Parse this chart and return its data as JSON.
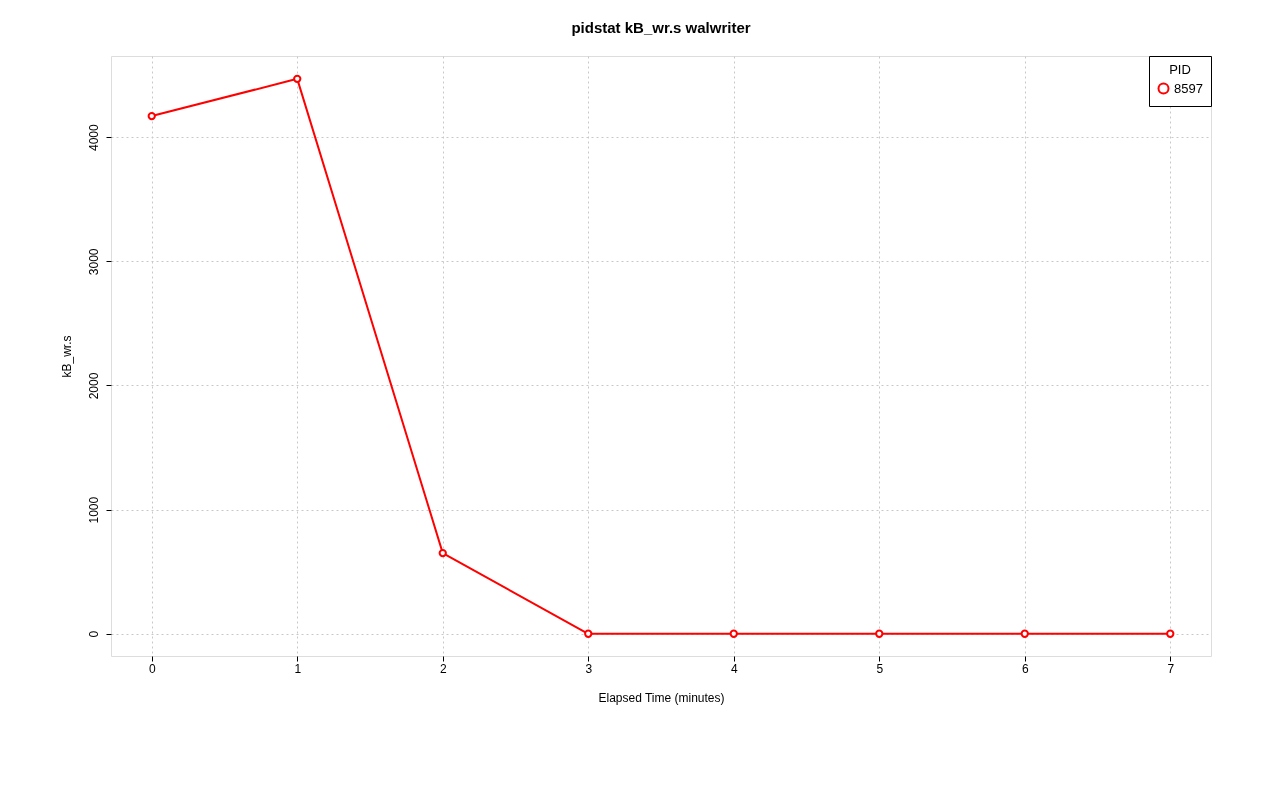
{
  "chart_data": {
    "type": "line",
    "title": "pidstat kB_wr.s walwriter",
    "xlabel": "Elapsed Time (minutes)",
    "ylabel": "kB_wr.s",
    "legend_title": "PID",
    "x": [
      0,
      1,
      2,
      3,
      4,
      5,
      6,
      7
    ],
    "series": [
      {
        "name": "8597",
        "color": "#ff0000",
        "values": [
          4170,
          4470,
          650,
          0,
          0,
          0,
          0,
          0
        ]
      }
    ],
    "xlim": [
      -0.28,
      7.28
    ],
    "ylim": [
      -179,
      4654
    ],
    "xticks": [
      0,
      1,
      2,
      3,
      4,
      5,
      6,
      7
    ],
    "yticks": [
      0,
      1000,
      2000,
      3000,
      4000
    ],
    "grid": true,
    "legend": "top right",
    "marker": "circle",
    "line_style": "solid"
  }
}
